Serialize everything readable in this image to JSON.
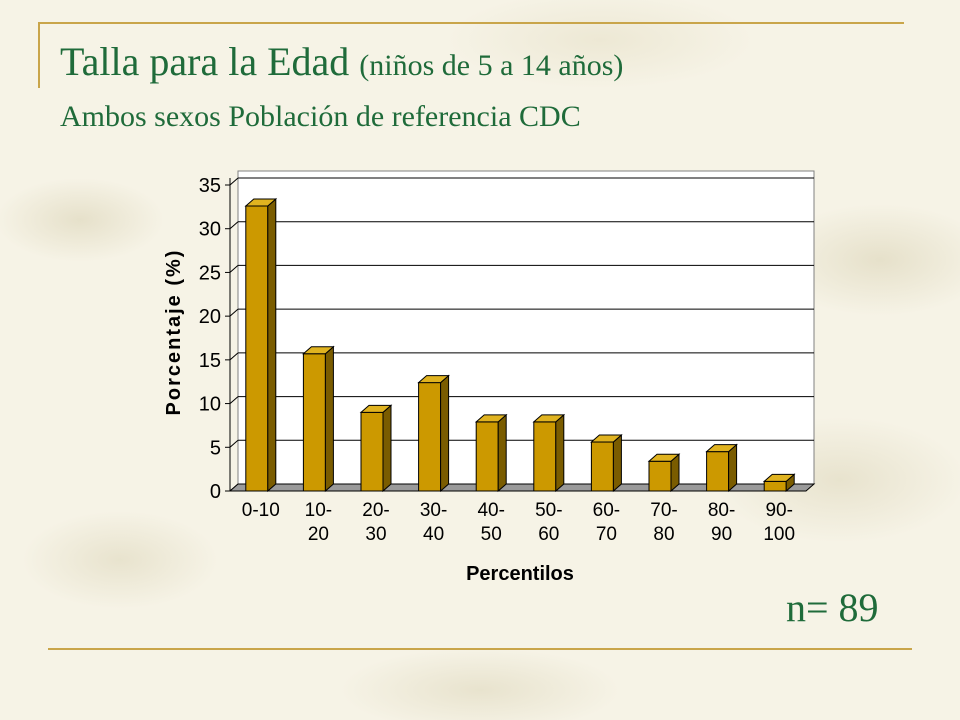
{
  "slide": {
    "title": "Talla para la Edad",
    "title_paren": "(niños de 5 a 14 años)",
    "subtitle": "Ambos sexos Población de referencia CDC",
    "n_label": "n= 89"
  },
  "colors": {
    "title": "#1f6b3a",
    "bar_front": "#cc9900",
    "bar_side": "#7a5c00",
    "bar_top": "#e0b320",
    "rule": "#c9a54a"
  },
  "chart_data": {
    "type": "bar",
    "categories": [
      "0-10\n",
      "10-\n20",
      "20-\n30",
      "30-\n40",
      "40-\n50",
      "50-\n60",
      "60-\n70",
      "70-\n80",
      "80-\n90",
      "90-\n100"
    ],
    "values": [
      32.6,
      15.7,
      9.0,
      12.4,
      7.9,
      7.9,
      5.6,
      3.4,
      4.5,
      1.1
    ],
    "xlabel": "Percentilos",
    "ylabel": "Porcentaje (%)",
    "ylim": [
      0,
      35
    ],
    "yticks": [
      0,
      5,
      10,
      15,
      20,
      25,
      30,
      35
    ],
    "grid": true
  }
}
